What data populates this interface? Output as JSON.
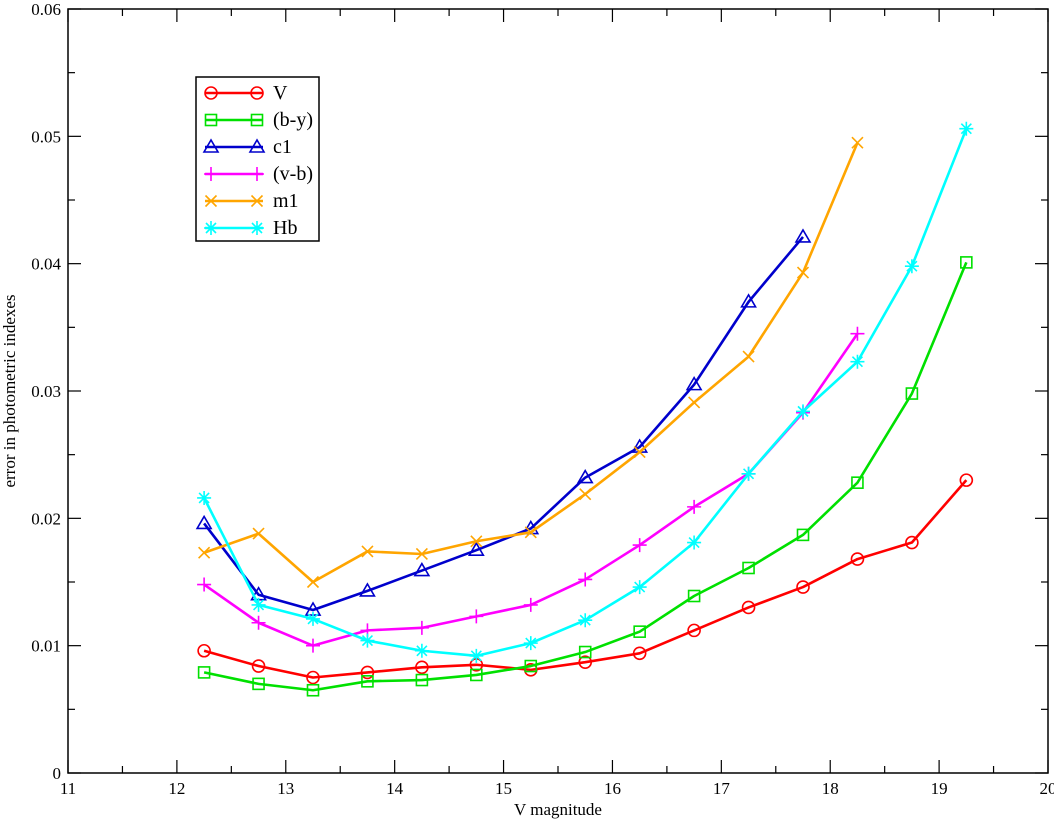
{
  "chart_data": {
    "type": "line",
    "title": "",
    "xlabel": "V magnitude",
    "ylabel": "error in photometric indexes",
    "xlim": [
      11,
      20
    ],
    "ylim": [
      0,
      0.06
    ],
    "xticks": [
      "11",
      "12",
      "13",
      "14",
      "15",
      "16",
      "17",
      "18",
      "19",
      "20"
    ],
    "yticks": [
      "0",
      "0.01",
      "0.02",
      "0.03",
      "0.04",
      "0.05",
      "0.06"
    ],
    "grid": false,
    "legend_position": "top-left",
    "series": [
      {
        "name": "V",
        "color": "#ff0000",
        "marker": "circle",
        "x": [
          12.25,
          12.75,
          13.25,
          13.75,
          14.25,
          14.75,
          15.25,
          15.75,
          16.25,
          16.75,
          17.25,
          17.75,
          18.25,
          18.75,
          19.25
        ],
        "y": [
          0.0096,
          0.0084,
          0.0075,
          0.0079,
          0.0083,
          0.0085,
          0.0081,
          0.0087,
          0.0094,
          0.0112,
          0.013,
          0.0146,
          0.0168,
          0.0181,
          0.023
        ]
      },
      {
        "name": "(b-y)",
        "color": "#00e000",
        "marker": "square",
        "x": [
          12.25,
          12.75,
          13.25,
          13.75,
          14.25,
          14.75,
          15.25,
          15.75,
          16.25,
          16.75,
          17.25,
          17.75,
          18.25,
          18.75,
          19.25
        ],
        "y": [
          0.0079,
          0.007,
          0.0065,
          0.0072,
          0.0073,
          0.0077,
          0.0084,
          0.0095,
          0.0111,
          0.0139,
          0.0161,
          0.0187,
          0.0228,
          0.0298,
          0.0401
        ]
      },
      {
        "name": "c1",
        "color": "#0000cc",
        "marker": "triangle",
        "x": [
          12.25,
          12.75,
          13.25,
          13.75,
          14.25,
          14.75,
          15.25,
          15.75,
          16.25,
          16.75,
          17.25,
          17.75
        ],
        "y": [
          0.0196,
          0.014,
          0.0128,
          0.0143,
          0.0159,
          0.0175,
          0.0192,
          0.0232,
          0.0256,
          0.0305,
          0.037,
          0.0421
        ]
      },
      {
        "name": "(v-b)",
        "color": "#ff00ff",
        "marker": "plus",
        "x": [
          12.25,
          12.75,
          13.25,
          13.75,
          14.25,
          14.75,
          15.25,
          15.75,
          16.25,
          16.75,
          17.25,
          17.75,
          18.25
        ],
        "y": [
          0.0148,
          0.0118,
          0.01,
          0.0112,
          0.0114,
          0.0123,
          0.0132,
          0.0152,
          0.0179,
          0.0209,
          0.0235,
          0.0283,
          0.0345
        ]
      },
      {
        "name": "m1",
        "color": "#ffa500",
        "marker": "x",
        "x": [
          12.25,
          12.75,
          13.25,
          13.75,
          14.25,
          14.75,
          15.25,
          15.75,
          16.25,
          16.75,
          17.25,
          17.75,
          18.25
        ],
        "y": [
          0.0173,
          0.0188,
          0.015,
          0.0174,
          0.0172,
          0.0182,
          0.0189,
          0.0219,
          0.0252,
          0.0291,
          0.0327,
          0.0393,
          0.0495
        ]
      },
      {
        "name": "Hb",
        "color": "#00ffff",
        "marker": "star",
        "x": [
          12.25,
          12.75,
          13.25,
          13.75,
          14.25,
          14.75,
          15.25,
          15.75,
          16.25,
          16.75,
          17.25,
          17.75,
          18.25,
          18.75,
          19.25
        ],
        "y": [
          0.0216,
          0.0132,
          0.0121,
          0.0104,
          0.0096,
          0.0092,
          0.0102,
          0.012,
          0.0146,
          0.0181,
          0.0235,
          0.0284,
          0.0323,
          0.0398,
          0.0506
        ]
      }
    ]
  }
}
